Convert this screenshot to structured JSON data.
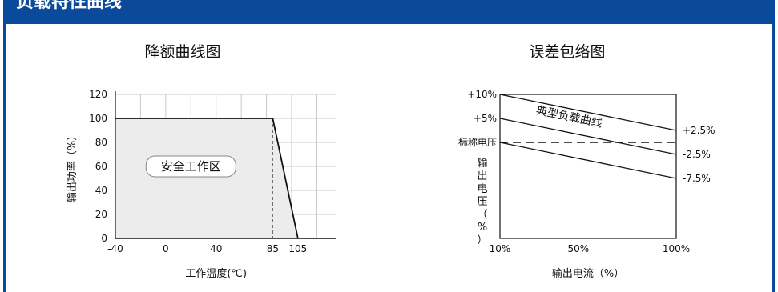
{
  "section": {
    "title": "负载特性曲线"
  },
  "colors": {
    "header": "#0b4a9a",
    "safe_area": "#ececec",
    "line": "#111111",
    "grid": "#c8c8c8"
  },
  "chart_data": [
    {
      "type": "area",
      "title": "降额曲线图",
      "xlabel": "工作温度(℃)",
      "ylabel": "输出功率（%）",
      "x_ticks": [
        "-40",
        "0",
        "40",
        "85",
        "105"
      ],
      "y_ticks": [
        "0",
        "20",
        "40",
        "60",
        "80",
        "100",
        "120"
      ],
      "xlim": [
        -40,
        135
      ],
      "ylim": [
        0,
        120
      ],
      "grid": true,
      "series": [
        {
          "x": [
            -40,
            85,
            105
          ],
          "y": [
            100,
            100,
            0
          ]
        }
      ],
      "reference_line": {
        "x": 85
      },
      "annotation": "安全工作区"
    },
    {
      "type": "line",
      "title": "误差包络图",
      "xlabel": "输出电流（%）",
      "ylabel": "输出电压（%）",
      "x_ticks": [
        "10%",
        "50%",
        "100%"
      ],
      "left_labels": [
        "+10%",
        "+5%",
        "标称电压"
      ],
      "right_labels": [
        "+2.5%",
        "-2.5%",
        "-7.5%"
      ],
      "annotation": "典型负载曲线",
      "grid": false,
      "series": [
        {
          "x": [
            10,
            100
          ],
          "y": [
            10,
            2.5
          ]
        },
        {
          "x": [
            10,
            100
          ],
          "y": [
            5,
            -2.5
          ]
        },
        {
          "x": [
            10,
            100
          ],
          "y": [
            0,
            -7.5
          ]
        }
      ],
      "reference_line": {
        "y": 0,
        "style": "dashed"
      }
    }
  ]
}
